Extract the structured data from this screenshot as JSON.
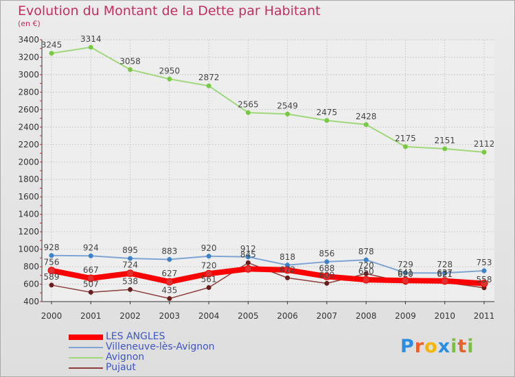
{
  "header": {
    "title": "Evolution du Montant de la Dette par Habitant",
    "unit": "(en €)"
  },
  "chart_data": {
    "type": "line",
    "title": "Evolution du Montant de la Dette par Habitant",
    "ylabel": "(en €)",
    "xlabel": "",
    "ylim": [
      400,
      3400
    ],
    "yticks": [
      400,
      600,
      800,
      1000,
      1200,
      1400,
      1600,
      1800,
      2000,
      2200,
      2400,
      2600,
      2800,
      3000,
      3200,
      3400
    ],
    "categories": [
      "2000",
      "2001",
      "2002",
      "2003",
      "2004",
      "2005",
      "2006",
      "2007",
      "2008",
      "2009",
      "2010",
      "2011"
    ],
    "grid": true,
    "legend_position": "bottom-left",
    "series": [
      {
        "name": "LES ANGLES",
        "color": "#ff0000",
        "point_color": "#e03030",
        "width": 8,
        "values": [
          756,
          667,
          724,
          627,
          720,
          775,
          762,
          688,
          650,
          641,
          637,
          608
        ],
        "labels": [
          "756",
          "667",
          "724",
          "627",
          "720",
          "",
          "",
          "688",
          "650",
          "641",
          "637",
          ""
        ]
      },
      {
        "name": "Villeneuve-lès-Avignon",
        "color": "#7ea4d4",
        "point_color": "#3d82c6",
        "width": 2,
        "values": [
          928,
          924,
          895,
          883,
          920,
          912,
          818,
          856,
          878,
          729,
          728,
          753
        ],
        "labels": [
          "928",
          "924",
          "895",
          "883",
          "920",
          "912",
          "818",
          "856",
          "878",
          "729",
          "728",
          "753"
        ]
      },
      {
        "name": "Avignon",
        "color": "#9fd87a",
        "point_color": "#7ac943",
        "width": 2,
        "values": [
          3245,
          3314,
          3058,
          2950,
          2872,
          2565,
          2549,
          2475,
          2428,
          2175,
          2151,
          2112
        ],
        "labels": [
          "3245",
          "3314",
          "3058",
          "2950",
          "2872",
          "2565",
          "2549",
          "2475",
          "2428",
          "2175",
          "2151",
          "2112"
        ]
      },
      {
        "name": "Pujaut",
        "color": "#8c3c3c",
        "point_color": "#6a1d1d",
        "width": 1.5,
        "values": [
          589,
          507,
          538,
          435,
          561,
          845,
          672,
          609,
          720,
          620,
          621,
          558
        ],
        "labels": [
          "589",
          "507",
          "538",
          "435",
          "561",
          "845",
          "672",
          "609",
          "720",
          "620",
          "621",
          "558"
        ]
      }
    ]
  },
  "logo": {
    "letters": [
      "P",
      "r",
      "o",
      "x",
      "i",
      "t",
      "i"
    ],
    "colors": [
      "#2a8ee0",
      "#e8612a",
      "#f5b400",
      "#2a8ee0",
      "#7bc043",
      "#e8612a",
      "#7bc043"
    ]
  }
}
